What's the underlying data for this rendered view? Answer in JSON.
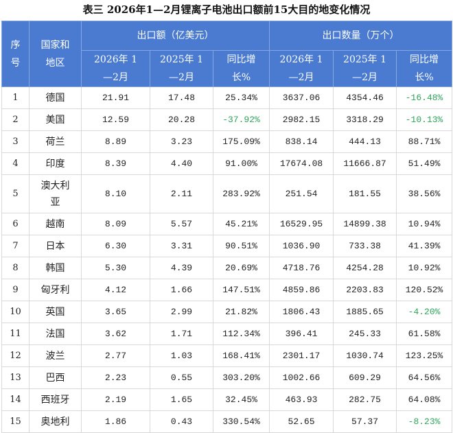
{
  "title": "表三 2026年1—2月锂离子电池出口额前15大目的地变化情况",
  "header": {
    "seq": "序号",
    "country": "国家和地区",
    "value_group": "出口额（亿美元）",
    "qty_group": "出口数量（万个）",
    "y2026": "2026年 1—2月",
    "y2025": "2025年 1—2月",
    "yoy": "同比增长%"
  },
  "colors": {
    "header_bg": "#4a7bd0",
    "negative": "#2ea55a"
  },
  "rows": [
    [
      "1",
      "德国",
      "21.91",
      "17.48",
      "25.34%",
      "3637.06",
      "4354.46",
      "-16.48%"
    ],
    [
      "2",
      "美国",
      "12.59",
      "20.28",
      "-37.92%",
      "2982.15",
      "3318.29",
      "-10.13%"
    ],
    [
      "3",
      "荷兰",
      "8.89",
      "3.23",
      "175.09%",
      "838.14",
      "444.13",
      "88.71%"
    ],
    [
      "4",
      "印度",
      "8.39",
      "4.40",
      "91.00%",
      "17674.08",
      "11666.87",
      "51.49%"
    ],
    [
      "5",
      "澳大利亚",
      "8.10",
      "2.11",
      "283.92%",
      "251.54",
      "181.55",
      "38.56%"
    ],
    [
      "6",
      "越南",
      "8.09",
      "5.57",
      "45.21%",
      "16529.95",
      "14899.38",
      "10.94%"
    ],
    [
      "7",
      "日本",
      "6.30",
      "3.31",
      "90.51%",
      "1036.90",
      "733.38",
      "41.39%"
    ],
    [
      "8",
      "韩国",
      "5.30",
      "4.39",
      "20.69%",
      "4718.76",
      "4254.28",
      "10.92%"
    ],
    [
      "9",
      "匈牙利",
      "4.12",
      "1.66",
      "147.51%",
      "4859.86",
      "2203.83",
      "120.52%"
    ],
    [
      "10",
      "英国",
      "3.65",
      "2.99",
      "21.82%",
      "1806.43",
      "1885.65",
      "-4.20%"
    ],
    [
      "11",
      "法国",
      "3.62",
      "1.71",
      "112.34%",
      "396.41",
      "245.33",
      "61.58%"
    ],
    [
      "12",
      "波兰",
      "2.77",
      "1.03",
      "168.41%",
      "2301.17",
      "1030.74",
      "123.25%"
    ],
    [
      "13",
      "巴西",
      "2.23",
      "0.55",
      "303.20%",
      "1002.66",
      "609.29",
      "64.56%"
    ],
    [
      "14",
      "西班牙",
      "2.19",
      "1.65",
      "32.45%",
      "463.93",
      "282.75",
      "64.08%"
    ],
    [
      "15",
      "奥地利",
      "1.86",
      "0.43",
      "330.54%",
      "52.65",
      "57.37",
      "-8.23%"
    ]
  ]
}
